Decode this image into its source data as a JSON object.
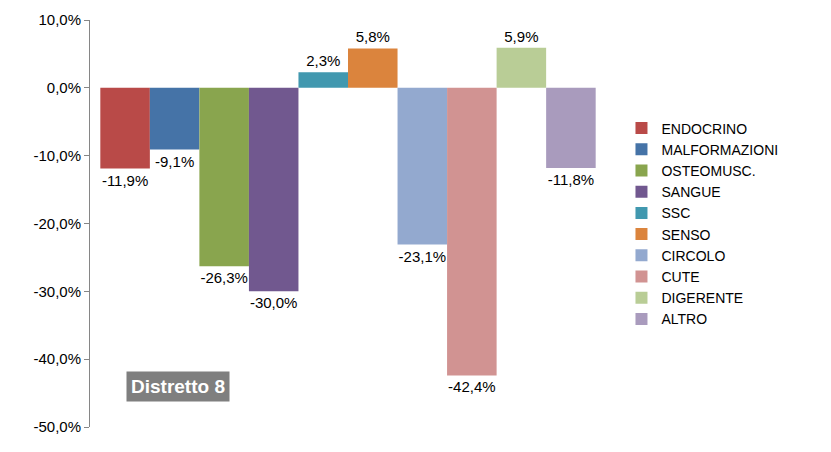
{
  "chart_data": {
    "type": "bar",
    "annotations": [
      "Distretto 8"
    ],
    "categories": [
      null
    ],
    "series": [
      {
        "name": "ENDOCRINO",
        "color": "#b94a48",
        "values": [
          -11.9
        ],
        "value_labels": [
          "-11,9%"
        ]
      },
      {
        "name": "MALFORMAZIONI",
        "color": "#4573a7",
        "values": [
          -9.1
        ],
        "value_labels": [
          "-9,1%"
        ]
      },
      {
        "name": "OSTEOMUSC.",
        "color": "#89a54e",
        "values": [
          -26.3
        ],
        "value_labels": [
          "-26,3%"
        ]
      },
      {
        "name": "SANGUE",
        "color": "#71588f",
        "values": [
          -30.0
        ],
        "value_labels": [
          "-30,0%"
        ]
      },
      {
        "name": "SSC",
        "color": "#4198af",
        "values": [
          2.3
        ],
        "value_labels": [
          "2,3%"
        ]
      },
      {
        "name": "SENSO",
        "color": "#db843d",
        "values": [
          5.8
        ],
        "value_labels": [
          "5,8%"
        ]
      },
      {
        "name": "CIRCOLO",
        "color": "#93a9cf",
        "values": [
          -23.1
        ],
        "value_labels": [
          "-23,1%"
        ]
      },
      {
        "name": "CUTE",
        "color": "#d19392",
        "values": [
          -42.4
        ],
        "value_labels": [
          "-42,4%"
        ]
      },
      {
        "name": "DIGERENTE",
        "color": "#b9cd96",
        "values": [
          5.9
        ],
        "value_labels": [
          "5,9%"
        ]
      },
      {
        "name": "ALTRO",
        "color": "#a99bbd",
        "values": [
          -11.8
        ],
        "value_labels": [
          "-11,8%"
        ]
      }
    ],
    "ylim": [
      -50,
      10
    ],
    "yticks": [
      {
        "value": -50,
        "label": "-50,0%"
      },
      {
        "value": -40,
        "label": "-40,0%"
      },
      {
        "value": -30,
        "label": "-30,0%"
      },
      {
        "value": -20,
        "label": "-20,0%"
      },
      {
        "value": -10,
        "label": "-10,0%"
      },
      {
        "value": 0,
        "label": "0,0%"
      },
      {
        "value": 10,
        "label": "10,0%"
      }
    ],
    "grid": false,
    "legend": "right",
    "data_labels": true,
    "tick_labels": "y"
  }
}
